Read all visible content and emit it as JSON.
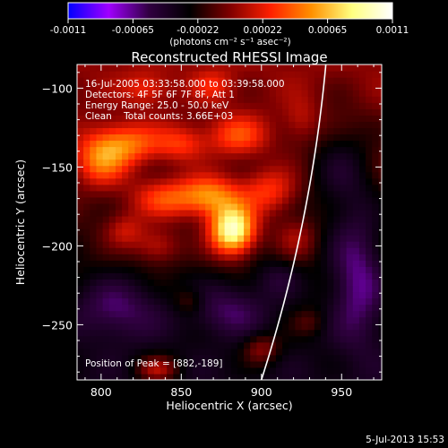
{
  "colorbar": {
    "tick_labels": [
      "-0.0011",
      "-0.00065",
      "-0.00022",
      "0.00022",
      "0.00065",
      "0.0011"
    ],
    "units": "(photons cm⁻² s⁻¹ asec⁻²)",
    "palette_stops": [
      "#0000ff",
      "#a000ff",
      "#300040",
      "#000000",
      "#800000",
      "#ff2000",
      "#ff9000",
      "#ffff80",
      "#ffffff"
    ]
  },
  "chart_data": {
    "type": "heatmap",
    "title": "Reconstructed RHESSI Image",
    "xlabel": "Heliocentric X (arcsec)",
    "ylabel": "Heliocentric Y (arcsec)",
    "xlim": [
      785,
      975
    ],
    "ylim": [
      -285,
      -85
    ],
    "x_ticks": [
      800,
      850,
      900,
      950
    ],
    "y_ticks": [
      -100,
      -150,
      -200,
      -250
    ],
    "y_tick_labels": [
      "−100",
      "−150",
      "−200",
      "−250"
    ],
    "value_range": [
      -0.0011,
      0.0011
    ],
    "peak": {
      "x": 882,
      "y": -189
    },
    "annotations": {
      "time_range": "16-Jul-2005 03:33:58.000 to 03:39:58.000",
      "detectors": "Detectors: 4F 5F 6F 7F 8F, Att 1",
      "energy_range": "Energy Range: 25.0 - 50.0 keV",
      "method_counts": "Clean    Total counts: 3.66E+03",
      "peak_position": "Position of Peak = [882,-189]"
    },
    "blobs": [
      {
        "x": 882,
        "y": -190,
        "sx": 10,
        "sy": 11,
        "amp": 1.05
      },
      {
        "x": 868,
        "y": -168,
        "sx": 13,
        "sy": 9,
        "amp": 0.55
      },
      {
        "x": 840,
        "y": -170,
        "sx": 15,
        "sy": 9,
        "amp": 0.42
      },
      {
        "x": 800,
        "y": -145,
        "sx": 12,
        "sy": 12,
        "amp": 0.5
      },
      {
        "x": 818,
        "y": -135,
        "sx": 14,
        "sy": 9,
        "amp": 0.42
      },
      {
        "x": 850,
        "y": -135,
        "sx": 11,
        "sy": 8,
        "amp": 0.32
      },
      {
        "x": 885,
        "y": -130,
        "sx": 13,
        "sy": 9,
        "amp": 0.38
      },
      {
        "x": 905,
        "y": -165,
        "sx": 12,
        "sy": 10,
        "amp": 0.38
      },
      {
        "x": 922,
        "y": -195,
        "sx": 9,
        "sy": 9,
        "amp": 0.22
      },
      {
        "x": 835,
        "y": -200,
        "sx": 10,
        "sy": 8,
        "amp": 0.3
      },
      {
        "x": 815,
        "y": -190,
        "sx": 9,
        "sy": 8,
        "amp": 0.28
      },
      {
        "x": 828,
        "y": -100,
        "sx": 10,
        "sy": 7,
        "amp": 0.25
      },
      {
        "x": 870,
        "y": -98,
        "sx": 9,
        "sy": 7,
        "amp": 0.22
      },
      {
        "x": 925,
        "y": -120,
        "sx": 8,
        "sy": 10,
        "amp": 0.18
      },
      {
        "x": 835,
        "y": -278,
        "sx": 9,
        "sy": 6,
        "amp": 0.38
      },
      {
        "x": 900,
        "y": -265,
        "sx": 8,
        "sy": 7,
        "amp": 0.3
      },
      {
        "x": 855,
        "y": -235,
        "sx": 7,
        "sy": 6,
        "amp": 0.2
      },
      {
        "x": 930,
        "y": -248,
        "sx": 7,
        "sy": 6,
        "amp": 0.15
      },
      {
        "x": 960,
        "y": -220,
        "sx": 12,
        "sy": 30,
        "amp": -0.38
      },
      {
        "x": 810,
        "y": -240,
        "sx": 20,
        "sy": 14,
        "amp": -0.3
      },
      {
        "x": 880,
        "y": -240,
        "sx": 18,
        "sy": 12,
        "amp": -0.28
      },
      {
        "x": 950,
        "y": -150,
        "sx": 15,
        "sy": 25,
        "amp": -0.25
      },
      {
        "x": 910,
        "y": -220,
        "sx": 10,
        "sy": 9,
        "amp": -0.18
      }
    ],
    "limb_arc": {
      "center": [
        0,
        0
      ],
      "radius_arcsec": 944,
      "description": "solar limb"
    }
  },
  "footer": {
    "timestamp": "5-Jul-2013 15:53"
  }
}
